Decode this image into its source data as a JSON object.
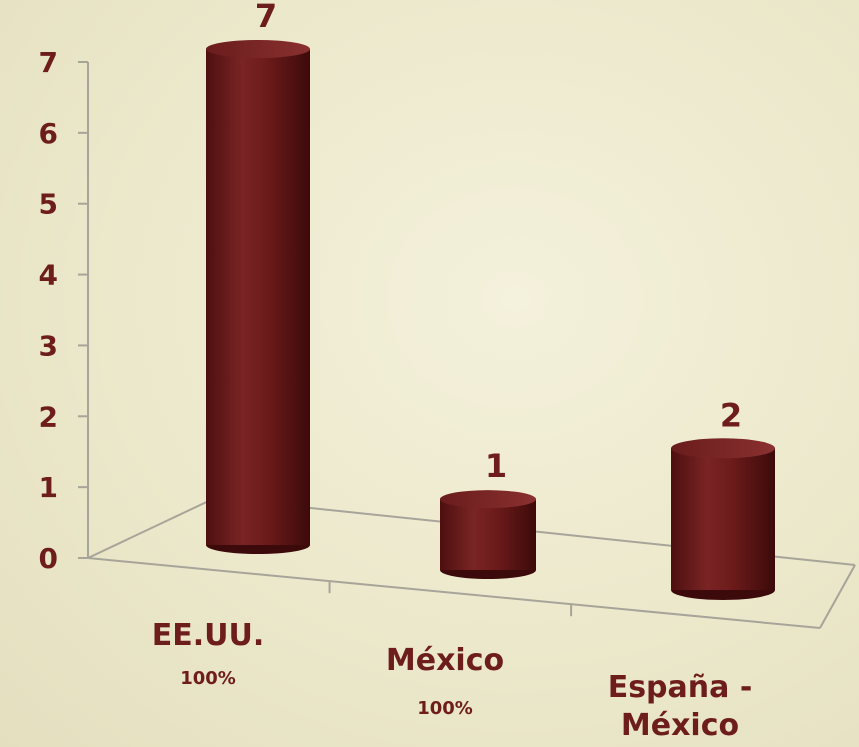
{
  "chart_data": {
    "type": "bar",
    "categories": [
      "EE.UU.",
      "México",
      "España - México"
    ],
    "category_lines": [
      [
        "EE.UU."
      ],
      [
        "México"
      ],
      [
        "España -",
        "México"
      ]
    ],
    "values": [
      7,
      1,
      2
    ],
    "percentages": [
      "100%",
      "100%",
      ""
    ],
    "yticks": [
      0,
      1,
      2,
      3,
      4,
      5,
      6,
      7
    ],
    "ylim": [
      0,
      7
    ],
    "title": "",
    "xlabel": "",
    "ylabel": "",
    "style": "3d-cylinder",
    "bar_color": "#6b1a1a",
    "text_color": "#6e1d1d"
  }
}
